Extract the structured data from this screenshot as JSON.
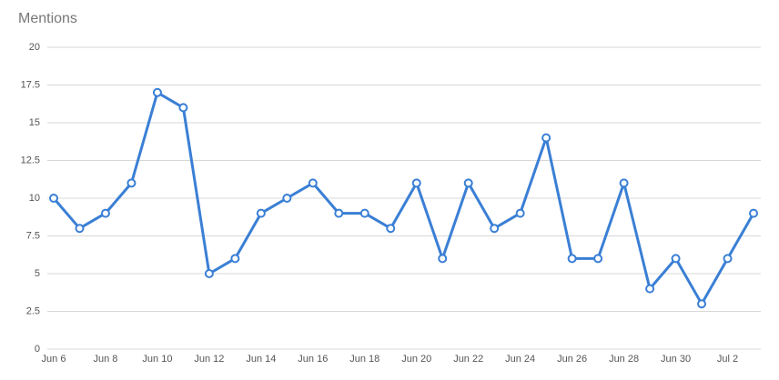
{
  "chart_data": {
    "type": "line",
    "title": "Mentions",
    "categories": [
      "Jun 6",
      null,
      "Jun 8",
      null,
      "Jun 10",
      null,
      "Jun 12",
      null,
      "Jun 14",
      null,
      "Jun 16",
      null,
      "Jun 18",
      null,
      "Jun 20",
      null,
      "Jun 22",
      null,
      "Jun 24",
      null,
      "Jun 26",
      null,
      "Jun 28",
      null,
      "Jun 30",
      null,
      "Jul 2",
      null
    ],
    "values": [
      10,
      8,
      9,
      11,
      17,
      16,
      5,
      6,
      9,
      10,
      11,
      9,
      9,
      8,
      11,
      6,
      11,
      8,
      9,
      14,
      6,
      6,
      11,
      4,
      6,
      3,
      6,
      9
    ],
    "color": "#3a7fd5",
    "ylim": [
      0,
      20
    ],
    "yticks": [
      0,
      2.5,
      5,
      7.5,
      10,
      12.5,
      15,
      17.5,
      20
    ],
    "grid": true
  }
}
